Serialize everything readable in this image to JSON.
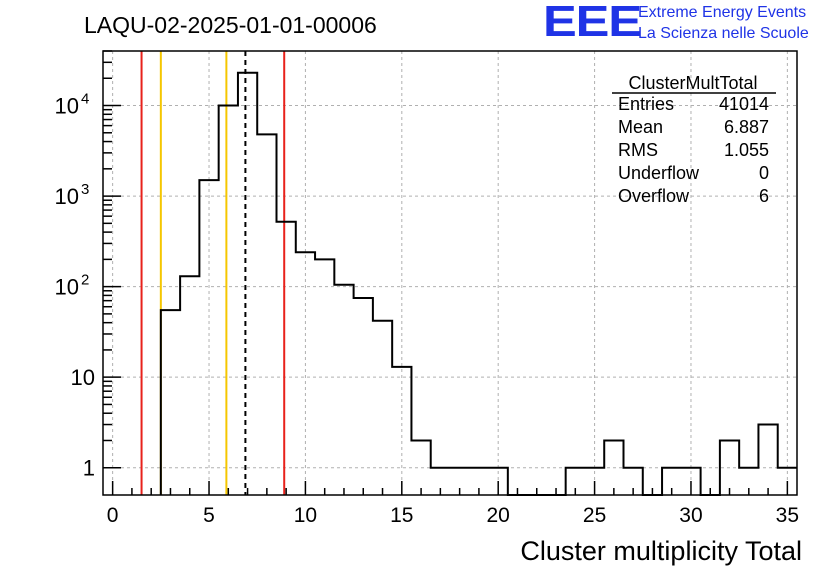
{
  "title": "LAQU-02-2025-01-01-00006",
  "logo": {
    "mark": "EEE",
    "line1": "Extreme Energy Events",
    "line2": "La Scienza nelle Scuole",
    "color": "#1f33e6"
  },
  "stats": {
    "name": "ClusterMultTotal",
    "rows": [
      {
        "label": "Entries",
        "value": "41014"
      },
      {
        "label": "Mean",
        "value": "6.887"
      },
      {
        "label": "RMS",
        "value": "1.055"
      },
      {
        "label": "Underflow",
        "value": "0"
      },
      {
        "label": "Overflow",
        "value": "6"
      }
    ]
  },
  "chart_data": {
    "type": "bar",
    "histogram": true,
    "xlabel": "Cluster multiplicity Total",
    "ylabel": "",
    "xlim": [
      -0.5,
      35.5
    ],
    "ylim": [
      0.5,
      40000
    ],
    "yscale": "log",
    "grid": true,
    "x_ticks": [
      0,
      5,
      10,
      15,
      20,
      25,
      30,
      35
    ],
    "x_tick_labels": [
      "0",
      "5",
      "10",
      "15",
      "20",
      "25",
      "30",
      "35"
    ],
    "y_ticks": [
      1,
      10,
      100,
      1000,
      10000
    ],
    "y_tick_labels": [
      {
        "base": "1",
        "exp": ""
      },
      {
        "base": "10",
        "exp": ""
      },
      {
        "base": "10",
        "exp": "2"
      },
      {
        "base": "10",
        "exp": "3"
      },
      {
        "base": "10",
        "exp": "4"
      }
    ],
    "bin_width": 1,
    "bin_centers": [
      0,
      1,
      2,
      3,
      4,
      5,
      6,
      7,
      8,
      9,
      10,
      11,
      12,
      13,
      14,
      15,
      16,
      17,
      18,
      19,
      20,
      21,
      22,
      23,
      24,
      25,
      26,
      27,
      28,
      29,
      30,
      31,
      32,
      33,
      34,
      35
    ],
    "values": [
      0,
      0,
      0,
      55,
      130,
      1500,
      10000,
      23000,
      4800,
      520,
      240,
      200,
      105,
      75,
      42,
      13,
      2,
      1,
      1,
      1,
      1,
      0,
      0,
      0,
      1,
      1,
      2,
      1,
      0,
      1,
      1,
      0,
      2,
      1,
      3,
      1
    ],
    "vertical_lines": [
      {
        "x": 1.5,
        "color": "#e8211b",
        "style": "solid"
      },
      {
        "x": 2.5,
        "color": "#f5c600",
        "style": "solid"
      },
      {
        "x": 5.9,
        "color": "#f5c600",
        "style": "solid"
      },
      {
        "x": 6.887,
        "color": "#000000",
        "style": "dashed"
      },
      {
        "x": 8.9,
        "color": "#e8211b",
        "style": "solid"
      }
    ]
  }
}
